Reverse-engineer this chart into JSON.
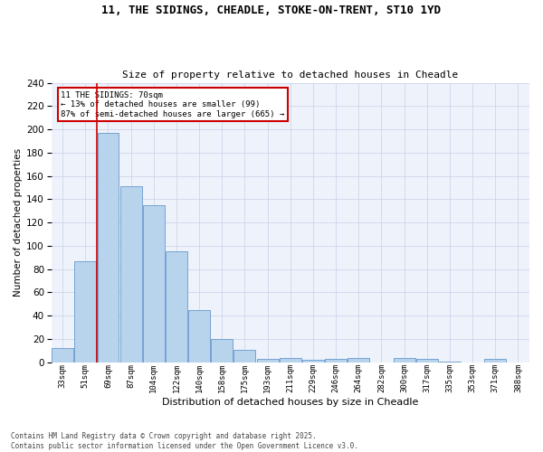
{
  "title1": "11, THE SIDINGS, CHEADLE, STOKE-ON-TRENT, ST10 1YD",
  "title2": "Size of property relative to detached houses in Cheadle",
  "xlabel": "Distribution of detached houses by size in Cheadle",
  "ylabel": "Number of detached properties",
  "footnote": "Contains HM Land Registry data © Crown copyright and database right 2025.\nContains public sector information licensed under the Open Government Licence v3.0.",
  "categories": [
    "33sqm",
    "51sqm",
    "69sqm",
    "87sqm",
    "104sqm",
    "122sqm",
    "140sqm",
    "158sqm",
    "175sqm",
    "193sqm",
    "211sqm",
    "229sqm",
    "246sqm",
    "264sqm",
    "282sqm",
    "300sqm",
    "317sqm",
    "335sqm",
    "353sqm",
    "371sqm",
    "388sqm"
  ],
  "values": [
    12,
    87,
    197,
    151,
    135,
    95,
    45,
    20,
    11,
    3,
    4,
    2,
    3,
    4,
    0,
    4,
    3,
    1,
    0,
    3,
    0
  ],
  "bar_color": "#b8d4ed",
  "bar_edge_color": "#6699cc",
  "annotation_title": "11 THE SIDINGS: 70sqm",
  "annotation_line1": "← 13% of detached houses are smaller (99)",
  "annotation_line2": "87% of semi-detached houses are larger (665) →",
  "annotation_box_color": "#cc0000",
  "ylim": [
    0,
    240
  ],
  "yticks": [
    0,
    20,
    40,
    60,
    80,
    100,
    120,
    140,
    160,
    180,
    200,
    220,
    240
  ],
  "bg_color": "#eef2fb",
  "grid_color": "#c8d0e8",
  "red_line_x": 1.5
}
